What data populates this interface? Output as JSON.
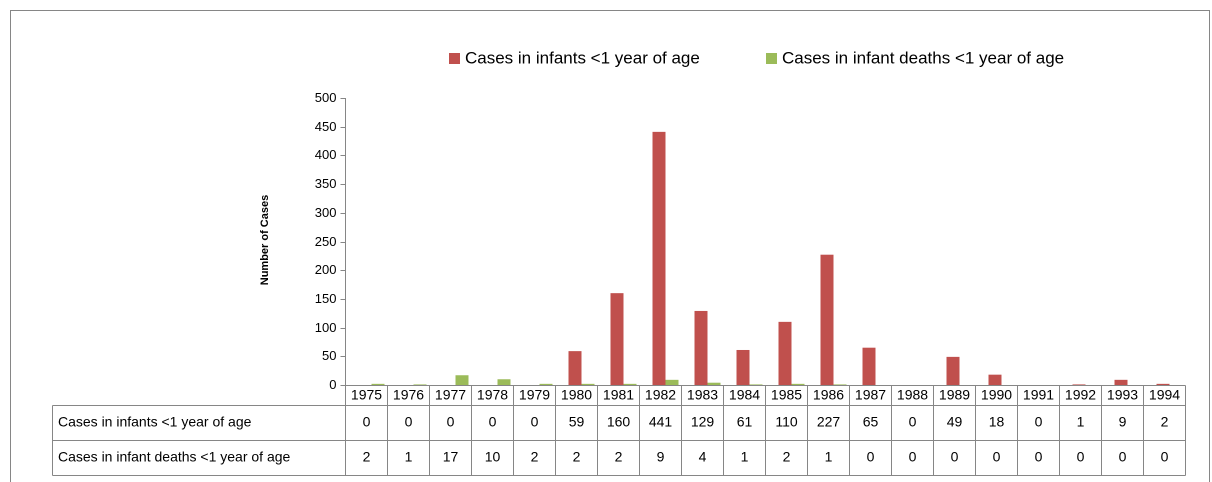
{
  "chart_data": {
    "type": "bar",
    "y_label": "Number of Cases",
    "categories": [
      "1975",
      "1976",
      "1977",
      "1978",
      "1979",
      "1980",
      "1981",
      "1982",
      "1983",
      "1984",
      "1985",
      "1986",
      "1987",
      "1988",
      "1989",
      "1990",
      "1991",
      "1992",
      "1993",
      "1994"
    ],
    "series": [
      {
        "name": "Cases in infants <1 year of age",
        "color": "#c0504d",
        "values": [
          0,
          0,
          0,
          0,
          0,
          59,
          160,
          441,
          129,
          61,
          110,
          227,
          65,
          0,
          49,
          18,
          0,
          1,
          9,
          2
        ]
      },
      {
        "name": "Cases in infant deaths <1 year of age",
        "color": "#9bbb59",
        "values": [
          2,
          1,
          17,
          10,
          2,
          2,
          2,
          9,
          4,
          1,
          2,
          1,
          0,
          0,
          0,
          0,
          0,
          0,
          0,
          0
        ]
      }
    ],
    "ylim": [
      0,
      500
    ],
    "yticks": [
      0,
      50,
      100,
      150,
      200,
      250,
      300,
      350,
      400,
      450,
      500
    ],
    "legend": "top",
    "data_table": true
  }
}
